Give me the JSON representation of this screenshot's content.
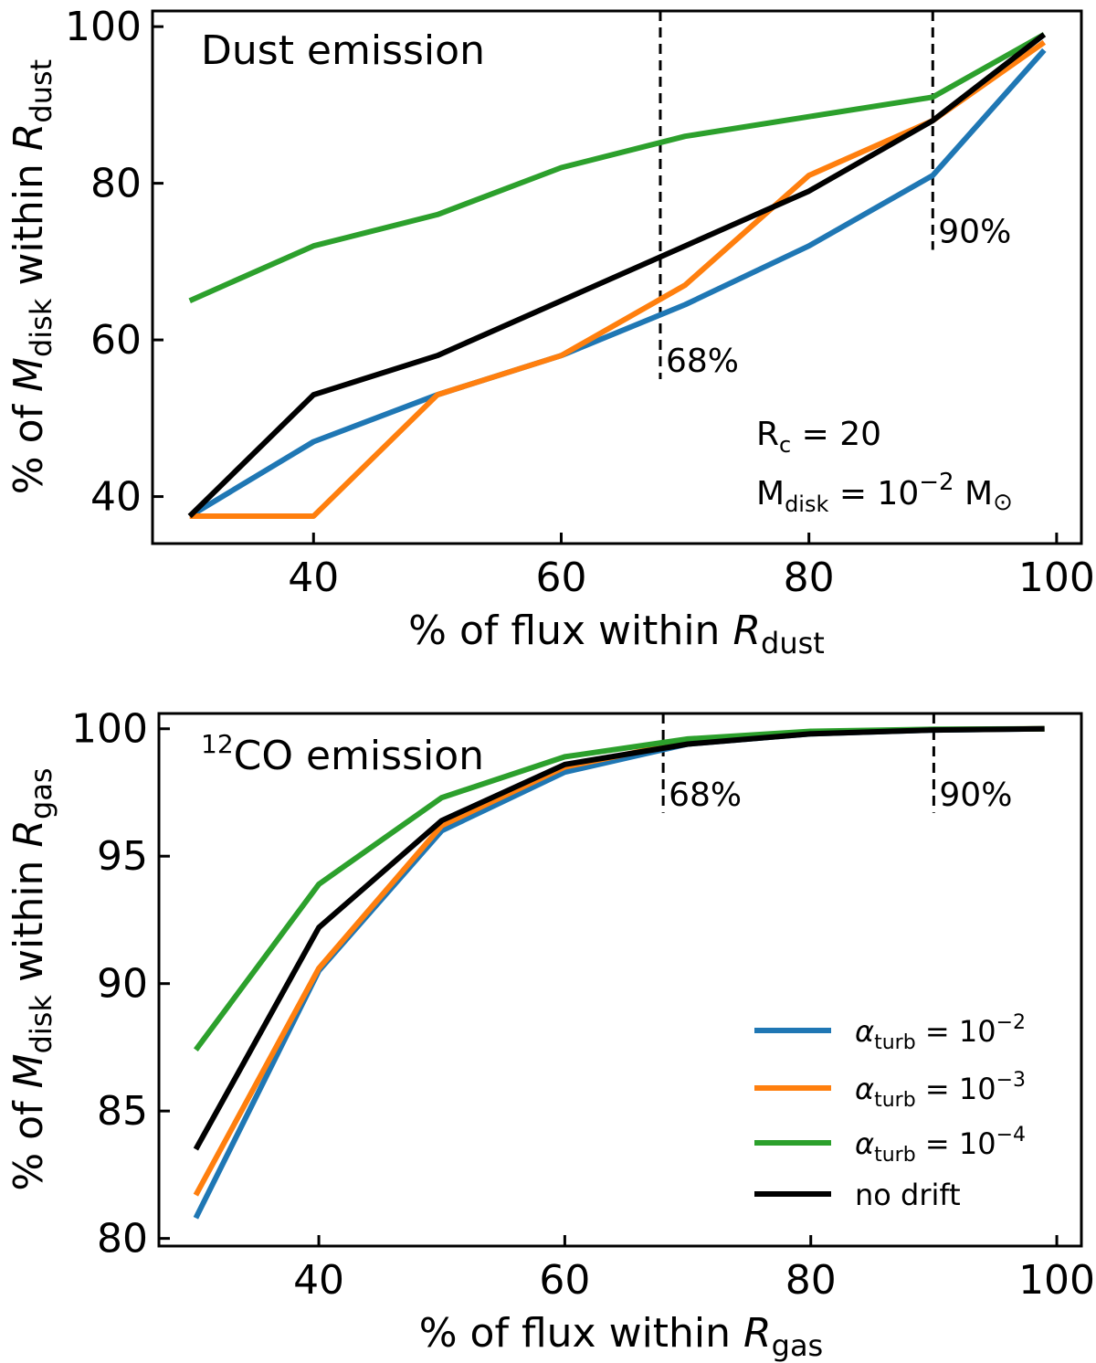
{
  "chart_data": [
    {
      "type": "line",
      "title": "Dust emission",
      "xlabel": "% of flux within",
      "xlabel_var": "R",
      "xlabel_sub": "dust",
      "ylabel": "% of",
      "ylabel_var": "M",
      "ylabel_var_sub": "disk",
      "ylabel_mid": "within",
      "ylabel_var2": "R",
      "ylabel_sub": "dust",
      "xlim": [
        27,
        102
      ],
      "ylim": [
        34,
        102
      ],
      "xticks": [
        40,
        60,
        80,
        100
      ],
      "yticks": [
        40,
        60,
        80,
        100
      ],
      "xtick_labels": [
        "40",
        "60",
        "80",
        "100"
      ],
      "ytick_labels": [
        "40",
        "60",
        "80",
        "100"
      ],
      "x": [
        30,
        40,
        50,
        60,
        70,
        80,
        90,
        99
      ],
      "series": [
        {
          "name": "alpha_turb = 10^-2",
          "color": "#1f77b4",
          "values": [
            37.5,
            47,
            53,
            58,
            64.5,
            72,
            81,
            97
          ]
        },
        {
          "name": "alpha_turb = 10^-3",
          "color": "#ff7f0e",
          "values": [
            37.5,
            37.5,
            53,
            58,
            67,
            81,
            88,
            98
          ]
        },
        {
          "name": "alpha_turb = 10^-4",
          "color": "#2ca02c",
          "values": [
            65,
            72,
            76,
            82,
            86,
            88.5,
            91,
            99
          ]
        },
        {
          "name": "no drift",
          "color": "#000000",
          "values": [
            37.5,
            53,
            58,
            65,
            72,
            79,
            88,
            99
          ]
        }
      ],
      "vlines": [
        {
          "x": 68,
          "label": "68%",
          "y_from": 55,
          "y_to": 102
        },
        {
          "x": 90,
          "label": "90%",
          "y_from": 71.5,
          "y_to": 102
        }
      ],
      "annotations": {
        "rc_text": "R",
        "rc_sub": "c",
        "rc_value": " = 20",
        "mdisk_text": "M",
        "mdisk_sub": "disk",
        "mdisk_value": " = 10",
        "mdisk_exp": "−2",
        "mdisk_unit": " M",
        "mdisk_unit_sub": "⊙"
      }
    },
    {
      "type": "line",
      "title_sup": "12",
      "title": "CO emission",
      "xlabel": "% of flux within",
      "xlabel_var": "R",
      "xlabel_sub": "gas",
      "ylabel": "% of",
      "ylabel_var": "M",
      "ylabel_var_sub": "disk",
      "ylabel_mid": "within",
      "ylabel_var2": "R",
      "ylabel_sub": "gas",
      "xlim": [
        27,
        102
      ],
      "ylim": [
        79.7,
        100.6
      ],
      "xticks": [
        40,
        60,
        80,
        100
      ],
      "yticks": [
        80,
        85,
        90,
        95,
        100
      ],
      "xtick_labels": [
        "40",
        "60",
        "80",
        "100"
      ],
      "ytick_labels": [
        "80",
        "85",
        "90",
        "95",
        "100"
      ],
      "x": [
        30,
        40,
        50,
        60,
        70,
        80,
        90,
        99
      ],
      "series": [
        {
          "name": "alpha_turb = 10^-2",
          "color": "#1f77b4",
          "values": [
            80.8,
            90.5,
            96.0,
            98.3,
            99.4,
            99.8,
            99.95,
            100.0
          ]
        },
        {
          "name": "alpha_turb = 10^-3",
          "color": "#ff7f0e",
          "values": [
            81.7,
            90.6,
            96.2,
            98.5,
            99.5,
            99.85,
            99.97,
            100.0
          ]
        },
        {
          "name": "alpha_turb = 10^-4",
          "color": "#2ca02c",
          "values": [
            87.4,
            93.9,
            97.3,
            98.9,
            99.6,
            99.9,
            99.98,
            100.0
          ]
        },
        {
          "name": "no drift",
          "color": "#000000",
          "values": [
            83.5,
            92.2,
            96.4,
            98.6,
            99.4,
            99.8,
            99.95,
            100.0
          ]
        }
      ],
      "vlines": [
        {
          "x": 68,
          "label": "68%",
          "y_from": 96.7,
          "y_to": 100.6
        },
        {
          "x": 90,
          "label": "90%",
          "y_from": 96.7,
          "y_to": 100.6
        }
      ],
      "legend": {
        "placement": "lower-right",
        "entries": [
          {
            "sym": "α",
            "sub": "turb",
            "rest": " = 10",
            "exp": "−2",
            "color": "#1f77b4"
          },
          {
            "sym": "α",
            "sub": "turb",
            "rest": " = 10",
            "exp": "−3",
            "color": "#ff7f0e"
          },
          {
            "sym": "α",
            "sub": "turb",
            "rest": " = 10",
            "exp": "−4",
            "color": "#2ca02c"
          },
          {
            "text": "no drift",
            "color": "#000000"
          }
        ]
      }
    }
  ]
}
